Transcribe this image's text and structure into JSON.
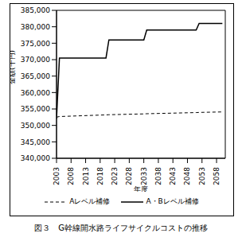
{
  "chart_data": {
    "type": "line",
    "title": "図３　G幹線開水路ライフサイクルコストの推移",
    "x_label": "年度",
    "y_label": "金額(千円)",
    "x": [
      2003,
      2004,
      2020,
      2021,
      2033,
      2034,
      2051,
      2052,
      2060
    ],
    "series": [
      {
        "name": "Aレベル補修",
        "color": "#000000",
        "line_style": "dashed",
        "values": [
          352500,
          352700,
          353200,
          353250,
          353500,
          353550,
          353900,
          353950,
          354100
        ]
      },
      {
        "name": "A・Bレベル補修",
        "color": "#000000",
        "line_style": "solid",
        "values": [
          352000,
          370500,
          370500,
          376000,
          376000,
          379000,
          379000,
          381000,
          381000
        ]
      }
    ],
    "xlim": [
      2003,
      2061
    ],
    "xticks": [
      2003,
      2008,
      2013,
      2018,
      2023,
      2028,
      2033,
      2038,
      2043,
      2048,
      2053,
      2058
    ],
    "ylim": [
      340000,
      385000
    ],
    "yticks": [
      {
        "value": 340000,
        "label": "340,000"
      },
      {
        "value": 345000,
        "label": "345,000"
      },
      {
        "value": 350000,
        "label": "350,000"
      },
      {
        "value": 355000,
        "label": "355,000"
      },
      {
        "value": 360000,
        "label": "360,000"
      },
      {
        "value": 365000,
        "label": "365,000"
      },
      {
        "value": 370000,
        "label": "370,000"
      },
      {
        "value": 375000,
        "label": "375,000"
      },
      {
        "value": 380000,
        "label": "380,000"
      },
      {
        "value": 385000,
        "label": "385,000"
      }
    ],
    "grid": false,
    "legend": "bottom"
  }
}
